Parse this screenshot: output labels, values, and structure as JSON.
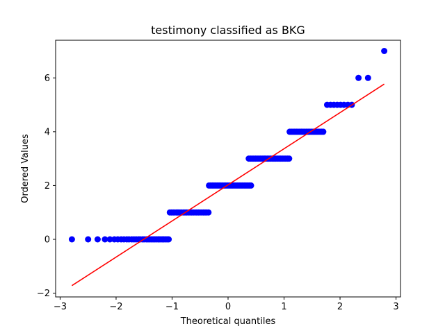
{
  "chart_data": {
    "type": "scatter",
    "title": "testimony classified as BKG",
    "xlabel": "Theoretical quantiles",
    "ylabel": "Ordered Values",
    "xlim": [
      -3.08,
      3.08
    ],
    "ylim": [
      -2.14,
      7.4
    ],
    "xticks": [
      -3,
      -2,
      -1,
      0,
      1,
      2,
      3
    ],
    "xtick_labels": [
      "−3",
      "−2",
      "−1",
      "0",
      "1",
      "2",
      "3"
    ],
    "yticks": [
      -2,
      0,
      2,
      4,
      6
    ],
    "ytick_labels": [
      "−2",
      "0",
      "2",
      "4",
      "6"
    ],
    "grid": false,
    "point_color": "#0000ff",
    "line_color": "#ff0000",
    "groups": [
      {
        "y": 0,
        "x": [
          -2.79,
          -2.5,
          -2.33,
          -2.2,
          -2.11,
          -2.03,
          -1.97,
          -1.91,
          -1.86,
          -1.81,
          -1.77,
          -1.72,
          -1.68,
          -1.64,
          -1.6,
          -1.57,
          -1.53,
          -1.5,
          -1.46,
          -1.43,
          -1.4,
          -1.37,
          -1.34,
          -1.31,
          -1.28,
          -1.25,
          -1.23,
          -1.2,
          -1.17,
          -1.15,
          -1.12,
          -1.09,
          -1.06
        ]
      },
      {
        "y": 1,
        "x": [
          -1.04,
          -1.01,
          -0.98,
          -0.95,
          -0.92,
          -0.89,
          -0.86,
          -0.83,
          -0.8,
          -0.77,
          -0.74,
          -0.71,
          -0.68,
          -0.65,
          -0.62,
          -0.59,
          -0.56,
          -0.53,
          -0.5,
          -0.47,
          -0.44,
          -0.41,
          -0.38,
          -0.35
        ]
      },
      {
        "y": 2,
        "x": [
          -0.34,
          -0.31,
          -0.28,
          -0.25,
          -0.22,
          -0.19,
          -0.16,
          -0.13,
          -0.1,
          -0.07,
          -0.04,
          -0.01,
          0.02,
          0.05,
          0.08,
          0.11,
          0.14,
          0.17,
          0.2,
          0.23,
          0.26,
          0.29,
          0.32,
          0.35,
          0.38,
          0.41
        ]
      },
      {
        "y": 3,
        "x": [
          0.37,
          0.4,
          0.43,
          0.46,
          0.49,
          0.52,
          0.55,
          0.58,
          0.61,
          0.64,
          0.67,
          0.7,
          0.73,
          0.76,
          0.79,
          0.82,
          0.85,
          0.88,
          0.91,
          0.94,
          0.97,
          1.0,
          1.03,
          1.06,
          1.09
        ]
      },
      {
        "y": 4,
        "x": [
          1.1,
          1.13,
          1.16,
          1.19,
          1.22,
          1.25,
          1.28,
          1.31,
          1.34,
          1.37,
          1.4,
          1.43,
          1.46,
          1.49,
          1.52,
          1.55,
          1.58,
          1.61,
          1.64,
          1.67,
          1.7
        ]
      },
      {
        "y": 5,
        "x": [
          1.77,
          1.83,
          1.89,
          1.95,
          2.01,
          2.07,
          2.14,
          2.21
        ]
      },
      {
        "y": 6,
        "x": [
          2.33,
          2.5
        ]
      },
      {
        "y": 7,
        "x": [
          2.79
        ]
      }
    ],
    "fit_line": {
      "x": [
        -2.79,
        2.79
      ],
      "y": [
        -1.72,
        5.77
      ]
    }
  }
}
